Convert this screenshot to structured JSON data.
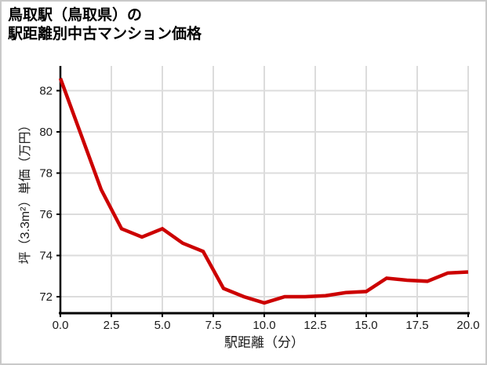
{
  "title": {
    "line1": "鳥取駅（鳥取県）の",
    "line2": "駅距離別中古マンション価格"
  },
  "chart_data": {
    "type": "line",
    "title": "鳥取駅（鳥取県）の駅距離別中古マンション価格",
    "xlabel": "駅距離（分）",
    "ylabel": "坪（3.3m²）単価（万円）",
    "x": [
      0,
      1,
      2,
      3,
      4,
      5,
      6,
      7,
      8,
      9,
      10,
      11,
      12,
      13,
      14,
      15,
      16,
      17,
      18,
      19,
      20
    ],
    "values": [
      82.6,
      79.9,
      77.2,
      75.3,
      74.9,
      75.3,
      74.6,
      74.2,
      72.4,
      72.0,
      71.7,
      72.0,
      72.0,
      72.05,
      72.2,
      72.25,
      72.9,
      72.8,
      72.75,
      73.15,
      73.2
    ],
    "xlim": [
      0,
      20
    ],
    "ylim": [
      71.2,
      83.2
    ],
    "x_ticks": [
      0,
      2.5,
      5,
      7.5,
      10,
      12.5,
      15,
      17.5,
      20
    ],
    "x_tick_labels": [
      "0.0",
      "2.5",
      "5.0",
      "7.5",
      "10.0",
      "12.5",
      "15.0",
      "17.5",
      "20.0"
    ],
    "y_ticks": [
      72,
      74,
      76,
      78,
      80,
      82
    ],
    "y_tick_labels": [
      "72",
      "74",
      "76",
      "78",
      "80",
      "82"
    ],
    "grid": true,
    "legend": false
  },
  "colors": {
    "line": "#cc0000",
    "grid": "#dcdcdc",
    "axis": "#000000",
    "tick_text": "#1a1a1a",
    "frame_border": "#c9c9c9",
    "background": "#ffffff"
  }
}
